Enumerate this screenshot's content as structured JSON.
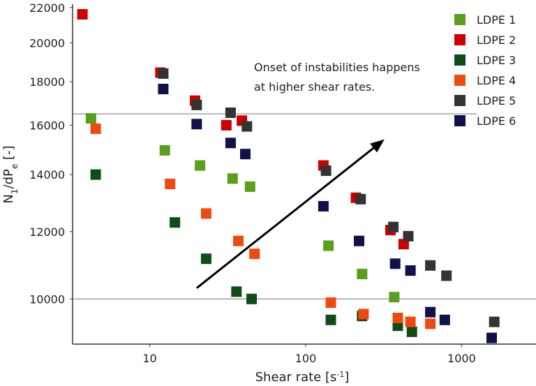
{
  "chart_data": {
    "type": "scatter",
    "xlabel": "Shear rate [s",
    "xlabel_sup": "-1",
    "xlabel_end": "]",
    "ylabel": "N",
    "ylabel_sub1": "1",
    "ylabel_mid": "/dP",
    "ylabel_sub2": "e",
    "ylabel_end": " [-]",
    "x_scale": "log",
    "y_scale": "log",
    "xlim": [
      3.2,
      3000
    ],
    "ylim": [
      8850,
      22200
    ],
    "x_ticks": [
      {
        "value": 10,
        "label": "10"
      },
      {
        "value": 100,
        "label": "100"
      },
      {
        "value": 1000,
        "label": "1000"
      }
    ],
    "y_ticks": [
      {
        "value": 10000,
        "label": "10000"
      },
      {
        "value": 12000,
        "label": "12000"
      },
      {
        "value": 14000,
        "label": "14000"
      },
      {
        "value": 16000,
        "label": "16000"
      },
      {
        "value": 18000,
        "label": "18000"
      },
      {
        "value": 20000,
        "label": "20000"
      },
      {
        "value": 22000,
        "label": "22000"
      }
    ],
    "reference_lines": [
      {
        "y": 16500,
        "x_from": 3.2,
        "x_to": 1250
      },
      {
        "y": 10000,
        "x_from": 3.2,
        "x_to": 3000
      }
    ],
    "annotation": {
      "lines": [
        "Onset of instabilities happens",
        "at higher shear rates."
      ]
    },
    "arrow": {
      "from": [
        20,
        10300
      ],
      "to": [
        320,
        15400
      ]
    },
    "legend_position": "top-right",
    "series": [
      {
        "name": "LDPE 1",
        "color": "#5a9e1e",
        "points": [
          [
            4.2,
            16300
          ],
          [
            12.5,
            14950
          ],
          [
            21,
            14350
          ],
          [
            34,
            13850
          ],
          [
            44,
            13550
          ],
          [
            140,
            11550
          ],
          [
            230,
            10700
          ],
          [
            370,
            10050
          ]
        ]
      },
      {
        "name": "LDPE 2",
        "color": "#cc0000",
        "points": [
          [
            3.7,
            21600
          ],
          [
            11.7,
            18450
          ],
          [
            19.5,
            17100
          ],
          [
            31,
            16000
          ],
          [
            39,
            16200
          ],
          [
            130,
            14350
          ],
          [
            210,
            13150
          ],
          [
            350,
            12050
          ],
          [
            425,
            11600
          ]
        ]
      },
      {
        "name": "LDPE 3",
        "color": "#0f4d16",
        "points": [
          [
            4.5,
            14000
          ],
          [
            14.5,
            12300
          ],
          [
            23,
            11150
          ],
          [
            36,
            10200
          ],
          [
            45,
            10000
          ],
          [
            145,
            9450
          ],
          [
            230,
            9550
          ],
          [
            390,
            9300
          ],
          [
            480,
            9150
          ]
        ]
      },
      {
        "name": "LDPE 4",
        "color": "#ee4a10",
        "points": [
          [
            4.5,
            15850
          ],
          [
            13.5,
            13650
          ],
          [
            23,
            12600
          ],
          [
            37,
            11700
          ],
          [
            47,
            11300
          ],
          [
            145,
            9900
          ],
          [
            235,
            9600
          ],
          [
            390,
            9500
          ],
          [
            470,
            9400
          ],
          [
            630,
            9350
          ]
        ]
      },
      {
        "name": "LDPE 5",
        "color": "#333333",
        "points": [
          [
            12.2,
            18400
          ],
          [
            20,
            16900
          ],
          [
            33,
            16550
          ],
          [
            42,
            15950
          ],
          [
            135,
            14150
          ],
          [
            225,
            13100
          ],
          [
            365,
            12150
          ],
          [
            455,
            11850
          ],
          [
            630,
            10950
          ],
          [
            800,
            10650
          ],
          [
            1620,
            9400
          ]
        ]
      },
      {
        "name": "LDPE 6",
        "color": "#10104a",
        "points": [
          [
            12.2,
            17650
          ],
          [
            20,
            16050
          ],
          [
            33,
            15250
          ],
          [
            41,
            14800
          ],
          [
            130,
            12850
          ],
          [
            220,
            11700
          ],
          [
            375,
            11000
          ],
          [
            470,
            10800
          ],
          [
            630,
            9650
          ],
          [
            780,
            9450
          ],
          [
            1560,
            9000
          ]
        ]
      }
    ]
  }
}
